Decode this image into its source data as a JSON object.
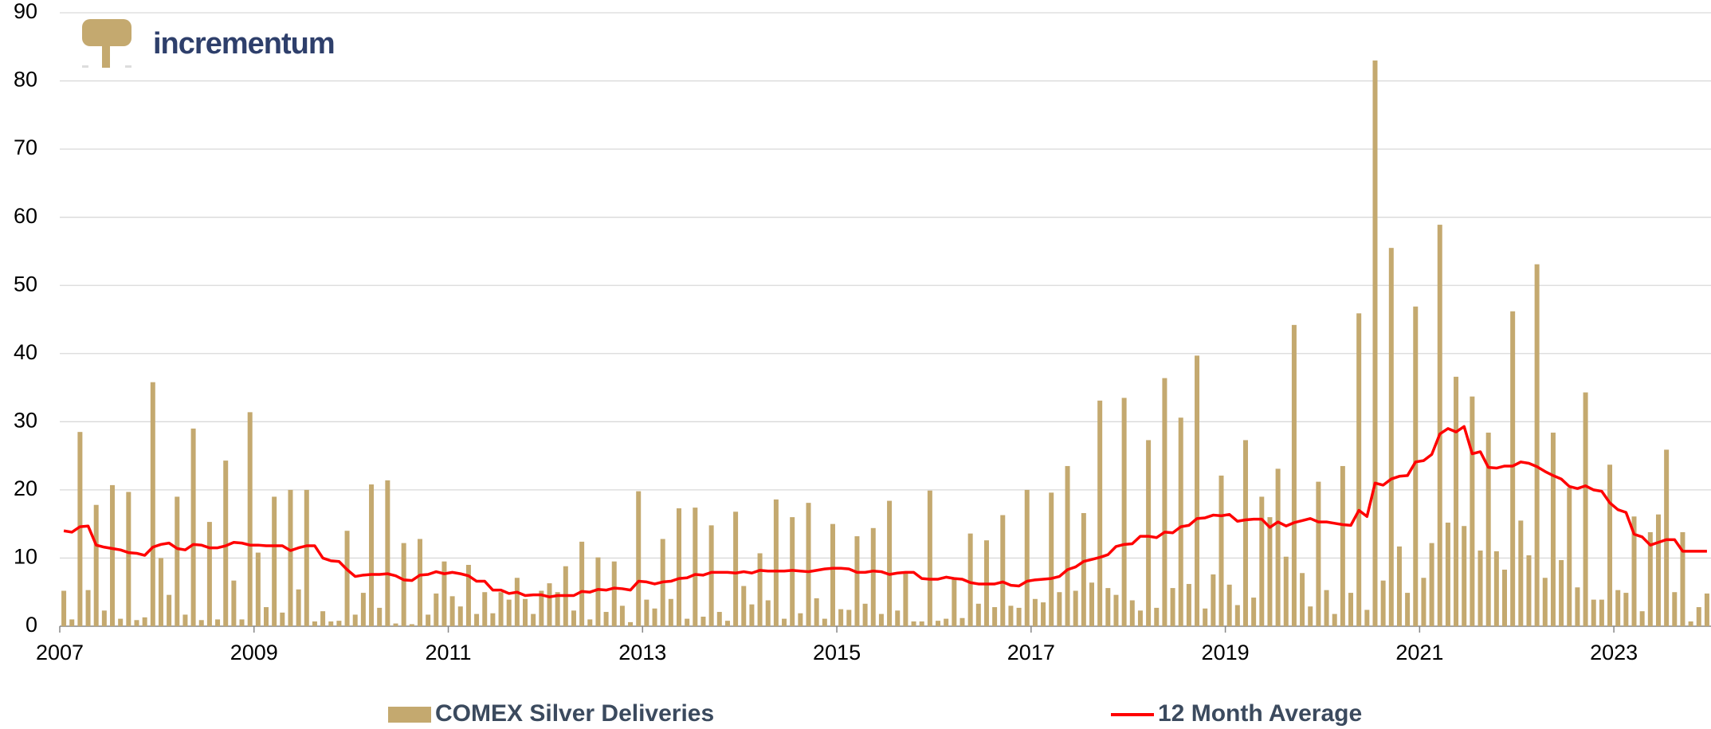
{
  "chart_data": {
    "type": "bar",
    "logo": "incrementum",
    "categories": [
      "2007",
      null,
      null,
      null,
      null,
      null,
      null,
      null,
      null,
      null,
      null,
      null,
      null,
      null,
      null,
      null,
      null,
      null,
      null,
      null,
      null,
      null,
      null,
      null,
      "2009",
      null,
      null,
      null,
      null,
      null,
      null,
      null,
      null,
      null,
      null,
      null,
      null,
      null,
      null,
      null,
      null,
      null,
      null,
      null,
      null,
      null,
      null,
      null,
      "2011",
      null,
      null,
      null,
      null,
      null,
      null,
      null,
      null,
      null,
      null,
      null,
      null,
      null,
      null,
      null,
      null,
      null,
      null,
      null,
      null,
      null,
      null,
      null,
      "2013",
      null,
      null,
      null,
      null,
      null,
      null,
      null,
      null,
      null,
      null,
      null,
      null,
      null,
      null,
      null,
      null,
      null,
      null,
      null,
      null,
      null,
      null,
      null,
      "2015",
      null,
      null,
      null,
      null,
      null,
      null,
      null,
      null,
      null,
      null,
      null,
      null,
      null,
      null,
      null,
      null,
      null,
      null,
      null,
      null,
      null,
      null,
      null,
      "2017",
      null,
      null,
      null,
      null,
      null,
      null,
      null,
      null,
      null,
      null,
      null,
      null,
      null,
      null,
      null,
      null,
      null,
      null,
      null,
      null,
      null,
      null,
      null,
      "2019",
      null,
      null,
      null,
      null,
      null,
      null,
      null,
      null,
      null,
      null,
      null,
      null,
      null,
      null,
      null,
      null,
      null,
      null,
      null,
      null,
      null,
      null,
      null,
      "2021",
      null,
      null,
      null,
      null,
      null,
      null,
      null,
      null,
      null,
      null,
      null,
      null,
      null,
      null,
      null,
      null,
      null,
      null,
      null,
      null,
      null,
      null,
      null,
      "2023",
      null,
      null,
      null,
      null,
      null,
      null,
      null,
      null,
      null,
      null,
      null
    ],
    "series": [
      {
        "name": "COMEX Silver Deliveries",
        "type": "bar",
        "color": "#c4a96f",
        "values": [
          5.2,
          1,
          28.5,
          5.3,
          17.8,
          2.3,
          20.7,
          1.1,
          19.7,
          0.9,
          1.3,
          35.8,
          10,
          4.6,
          19,
          1.7,
          29,
          0.9,
          15.3,
          1,
          24.3,
          6.7,
          1,
          31.4,
          10.8,
          2.8,
          19,
          2,
          20,
          5.4,
          20,
          0.7,
          2.2,
          0.7,
          0.8,
          14,
          1.7,
          4.9,
          20.8,
          2.7,
          21.4,
          0.4,
          12.2,
          0.3,
          12.8,
          1.7,
          4.8,
          9.5,
          4.4,
          2.9,
          9,
          1.8,
          5,
          1.9,
          5,
          3.9,
          7.1,
          4,
          1.8,
          5.2,
          6.3,
          5,
          8.8,
          2.3,
          12.4,
          1,
          10.1,
          2.1,
          9.5,
          3,
          0.6,
          19.8,
          3.9,
          2.6,
          12.8,
          4,
          17.3,
          1.1,
          17.4,
          1.4,
          14.8,
          2.1,
          0.8,
          16.8,
          5.9,
          3.2,
          10.7,
          3.8,
          18.6,
          1.1,
          16,
          1.9,
          18.1,
          4.1,
          1.1,
          15,
          2.5,
          2.4,
          13.2,
          3.3,
          14.4,
          1.8,
          18.4,
          2.3,
          8,
          0.7,
          0.7,
          19.9,
          0.8,
          1.1,
          7,
          1.2,
          13.6,
          3.3,
          12.6,
          2.8,
          16.3,
          3,
          2.7,
          20,
          4,
          3.5,
          19.6,
          5,
          23.5,
          5.2,
          16.6,
          6.4,
          33.1,
          5.6,
          4.6,
          33.5,
          3.8,
          2.3,
          27.3,
          2.7,
          36.4,
          5.6,
          30.6,
          6.2,
          39.7,
          2.6,
          7.6,
          22.1,
          6.1,
          3.1,
          27.3,
          4.2,
          19,
          16,
          23.1,
          10.2,
          44.2,
          7.8,
          2.9,
          21.2,
          5.3,
          1.8,
          23.5,
          4.9,
          45.9,
          2.4,
          83,
          6.7,
          55.5,
          11.7,
          4.9,
          46.9,
          7.1,
          12.2,
          58.9,
          15.2,
          36.6,
          14.7,
          33.7,
          11.1,
          28.4,
          11,
          8.3,
          46.2,
          15.5,
          10.4,
          53.1,
          7.1,
          28.4,
          9.7,
          20.3,
          5.7,
          34.3,
          3.9,
          3.9,
          23.7,
          5.3,
          4.9,
          16.1,
          2.2,
          13.8,
          16.4,
          25.9,
          5,
          13.8,
          0.7,
          2.8,
          4.8
        ]
      },
      {
        "name": "12 Month Average",
        "type": "line",
        "color": "#ff0000",
        "values": [
          14,
          13.8,
          14.6,
          14.7,
          11.9,
          11.6,
          11.4,
          11.2,
          10.8,
          10.7,
          10.4,
          11.6,
          12,
          12.2,
          11.4,
          11.2,
          12,
          11.9,
          11.5,
          11.5,
          11.8,
          12.3,
          12.2,
          11.9,
          11.9,
          11.8,
          11.8,
          11.8,
          11.1,
          11.5,
          11.8,
          11.8,
          10,
          9.6,
          9.5,
          8.3,
          7.3,
          7.5,
          7.6,
          7.6,
          7.7,
          7.4,
          6.8,
          6.7,
          7.5,
          7.6,
          8,
          7.7,
          7.9,
          7.7,
          7.4,
          6.6,
          6.6,
          5.3,
          5.3,
          4.8,
          5,
          4.5,
          4.6,
          4.6,
          4.3,
          4.5,
          4.5,
          4.5,
          5.1,
          5,
          5.4,
          5.3,
          5.6,
          5.5,
          5.3,
          6.6,
          6.5,
          6.2,
          6.5,
          6.6,
          7,
          7.1,
          7.6,
          7.5,
          7.9,
          7.9,
          7.9,
          7.8,
          8,
          7.8,
          8.2,
          8.1,
          8.1,
          8.1,
          8.2,
          8.1,
          8,
          8.2,
          8.4,
          8.5,
          8.5,
          8.4,
          7.9,
          7.9,
          8.1,
          8,
          7.6,
          7.8,
          7.9,
          7.9,
          7,
          6.9,
          6.9,
          7.2,
          7,
          6.9,
          6.4,
          6.2,
          6.2,
          6.2,
          6.5,
          6,
          5.9,
          6.6,
          6.8,
          6.9,
          7,
          7.3,
          8.3,
          8.7,
          9.5,
          9.8,
          10.1,
          10.5,
          11.7,
          12,
          12.1,
          13.2,
          13.2,
          13,
          13.8,
          13.7,
          14.6,
          14.8,
          15.8,
          15.9,
          16.3,
          16.2,
          16.4,
          15.4,
          15.6,
          15.7,
          15.7,
          14.5,
          15.3,
          14.7,
          15.2,
          15.5,
          15.8,
          15.3,
          15.3,
          15.1,
          14.9,
          14.8,
          17,
          16.1,
          21,
          20.7,
          21.6,
          22,
          22.1,
          24.1,
          24.3,
          25.2,
          28.2,
          29,
          28.5,
          29.3,
          25.3,
          25.6,
          23.3,
          23.2,
          23.5,
          23.5,
          24.1,
          23.9,
          23.4,
          22.7,
          22.1,
          21.6,
          20.5,
          20.2,
          20.6,
          20,
          19.8,
          18.1,
          17.1,
          16.7,
          13.5,
          13.1,
          11.9,
          12.3,
          12.7,
          12.7,
          11,
          11,
          11,
          11
        ]
      }
    ],
    "ylim": [
      0,
      90
    ],
    "yticks": [
      0,
      10,
      20,
      30,
      40,
      50,
      60,
      70,
      80,
      90
    ],
    "grid": true
  }
}
